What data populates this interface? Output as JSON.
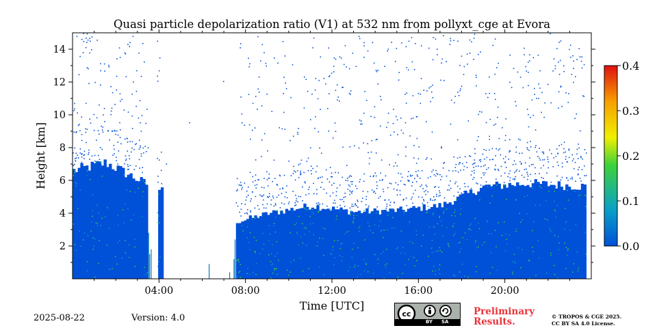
{
  "chart_data": {
    "type": "heatmap",
    "title": "Quasi particle depolarization ratio (V1) at 532 nm from pollyxt_cge at Evora",
    "xlabel": "Time [UTC]",
    "ylabel": "Height [km]",
    "xlim_hours": [
      0,
      24
    ],
    "ylim": [
      0,
      15
    ],
    "x_ticks": [
      {
        "hour": 4,
        "label": "04:00"
      },
      {
        "hour": 8,
        "label": "08:00"
      },
      {
        "hour": 12,
        "label": "12:00"
      },
      {
        "hour": 16,
        "label": "16:00"
      },
      {
        "hour": 20,
        "label": "20:00"
      }
    ],
    "y_ticks": [
      {
        "value": 2,
        "label": "2"
      },
      {
        "value": 4,
        "label": "4"
      },
      {
        "value": 6,
        "label": "6"
      },
      {
        "value": 8,
        "label": "8"
      },
      {
        "value": 10,
        "label": "10"
      },
      {
        "value": 12,
        "label": "12"
      },
      {
        "value": 14,
        "label": "14"
      }
    ],
    "colorbar": {
      "min": 0.0,
      "max": 0.4,
      "ticks": [
        {
          "value": 0.0,
          "label": "0.0"
        },
        {
          "value": 0.1,
          "label": "0.1"
        },
        {
          "value": 0.2,
          "label": "0.2"
        },
        {
          "value": 0.3,
          "label": "0.3"
        },
        {
          "value": 0.4,
          "label": "0.4"
        }
      ],
      "colors": [
        "#0050d8",
        "#0aa0c8",
        "#3ed23a",
        "#f0f000",
        "#f8a000",
        "#e01010"
      ]
    },
    "data_gaps_hours": [
      [
        3.45,
        3.9
      ],
      [
        4.1,
        7.55
      ]
    ],
    "cloud_top_profile_km": [
      {
        "hour": 0.0,
        "top": 6.8
      },
      {
        "hour": 1.5,
        "top": 7.3
      },
      {
        "hour": 3.3,
        "top": 6.0
      },
      {
        "hour": 7.6,
        "top": 3.6
      },
      {
        "hour": 9.0,
        "top": 4.1
      },
      {
        "hour": 11.0,
        "top": 4.6
      },
      {
        "hour": 13.0,
        "top": 4.2
      },
      {
        "hour": 15.0,
        "top": 4.3
      },
      {
        "hour": 17.0,
        "top": 4.6
      },
      {
        "hour": 19.0,
        "top": 5.8
      },
      {
        "hour": 21.0,
        "top": 6.0
      },
      {
        "hour": 23.7,
        "top": 5.8
      }
    ],
    "typical_value": 0.02
  },
  "footer": {
    "date": "2025-08-22",
    "version": "Version: 4.0",
    "preliminary_line1": "Preliminary",
    "preliminary_line2": "Results.",
    "copyright_line1": "© TROPOS & CGE 2025.",
    "copyright_line2": "CC BY SA 4.0 License.",
    "license_badge": {
      "cc": "cc",
      "by": "BY",
      "sa": "SA"
    }
  }
}
